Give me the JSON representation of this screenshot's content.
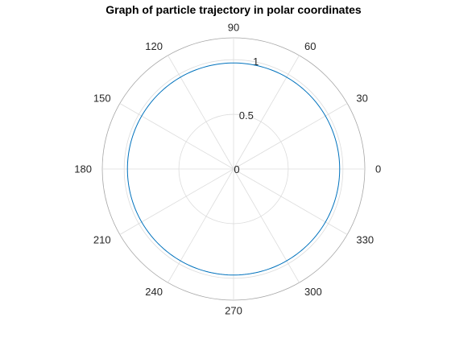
{
  "chart_data": {
    "type": "line",
    "coordinate_system": "polar",
    "title": "Graph of particle trajectory in polar coordinates",
    "theta_unit": "degrees",
    "theta_ticks": [
      0,
      30,
      60,
      90,
      120,
      150,
      180,
      210,
      240,
      270,
      300,
      330
    ],
    "theta_tick_labels": [
      "0",
      "30",
      "60",
      "90",
      "120",
      "150",
      "180",
      "210",
      "240",
      "270",
      "300",
      "330"
    ],
    "r_lim": [
      0,
      1.2
    ],
    "r_ticks": [
      0,
      0.5,
      1
    ],
    "r_tick_labels": [
      "0",
      "0.5",
      "1"
    ],
    "grid": true,
    "series": [
      {
        "color": "#0072bd",
        "theta": [
          0,
          15,
          30,
          45,
          60,
          75,
          90,
          105,
          120,
          135,
          150,
          165,
          180,
          195,
          210,
          225,
          240,
          255,
          270,
          285,
          300,
          315,
          330,
          345,
          360
        ],
        "r": [
          0.97,
          0.97,
          0.97,
          0.97,
          0.97,
          0.97,
          0.97,
          0.97,
          0.97,
          0.97,
          0.97,
          0.97,
          0.97,
          0.97,
          0.97,
          0.97,
          0.97,
          0.97,
          0.97,
          0.97,
          0.97,
          0.97,
          0.97,
          0.97,
          0.97
        ]
      }
    ]
  }
}
